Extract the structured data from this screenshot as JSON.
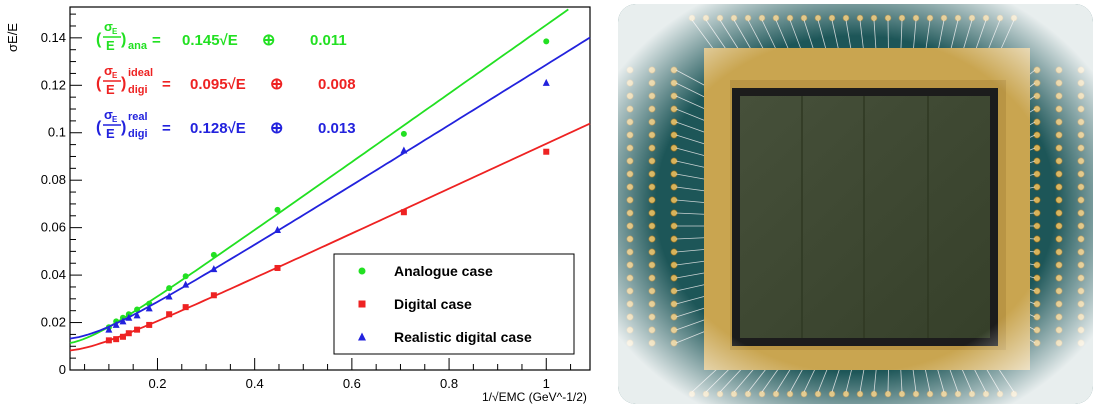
{
  "chart_data": {
    "type": "scatter",
    "title": "",
    "ylabel": "σE/E",
    "xlabel": "1/√EMC (GeV^-1/2)",
    "xlim": [
      0.02,
      1.09
    ],
    "ylim": [
      0,
      0.153
    ],
    "xticks": [
      "0.2",
      "0.4",
      "0.6",
      "0.8",
      "1"
    ],
    "yticks": [
      "0.02",
      "0.04",
      "0.06",
      "0.08",
      "0.1",
      "0.12",
      "0.14"
    ],
    "grid": false,
    "legend_position": "bottom-right",
    "series": [
      {
        "name": "Analogue case",
        "marker": "circle",
        "color": "#22e022",
        "x": [
          0.1,
          0.115,
          0.129,
          0.141,
          0.158,
          0.183,
          0.224,
          0.258,
          0.316,
          0.447,
          0.707,
          1.0
        ],
        "y": [
          0.018,
          0.0205,
          0.022,
          0.0235,
          0.0255,
          0.028,
          0.0345,
          0.0395,
          0.0485,
          0.0675,
          0.0995,
          0.1385
        ],
        "fit": {
          "stochastic": 0.145,
          "constant": 0.011
        }
      },
      {
        "name": "Digital case",
        "marker": "square",
        "color": "#ee2222",
        "x": [
          0.1,
          0.115,
          0.129,
          0.141,
          0.158,
          0.183,
          0.224,
          0.258,
          0.316,
          0.447,
          0.707,
          1.0
        ],
        "y": [
          0.0125,
          0.013,
          0.014,
          0.0155,
          0.017,
          0.019,
          0.0235,
          0.0265,
          0.0315,
          0.043,
          0.0665,
          0.092
        ],
        "fit": {
          "stochastic": 0.095,
          "constant": 0.008
        }
      },
      {
        "name": "Realistic digital case",
        "marker": "triangle",
        "color": "#2222dd",
        "x": [
          0.1,
          0.115,
          0.129,
          0.141,
          0.158,
          0.183,
          0.224,
          0.258,
          0.316,
          0.447,
          0.707,
          1.0
        ],
        "y": [
          0.017,
          0.019,
          0.0205,
          0.022,
          0.023,
          0.026,
          0.031,
          0.036,
          0.0425,
          0.059,
          0.0925,
          0.121
        ],
        "fit": {
          "stochastic": 0.128,
          "constant": 0.013
        }
      }
    ],
    "annotations": [
      {
        "label": "ana",
        "text": "0.145√E",
        "oplus": "⊕",
        "const": "0.011",
        "sup": "",
        "color": "#22e022"
      },
      {
        "label": "digi",
        "text": "0.095√E",
        "oplus": "⊕",
        "const": "0.008",
        "sup": "ideal",
        "color": "#ee2222"
      },
      {
        "label": "digi",
        "text": "0.128√E",
        "oplus": "⊕",
        "const": "0.013",
        "sup": "real",
        "color": "#2222dd"
      }
    ]
  },
  "photo": {
    "description_icon": "sensor-chip-photo",
    "colors": {
      "board": "#1f5a5c",
      "gold": "#c8a24a",
      "die": "#3d4a2c"
    }
  }
}
